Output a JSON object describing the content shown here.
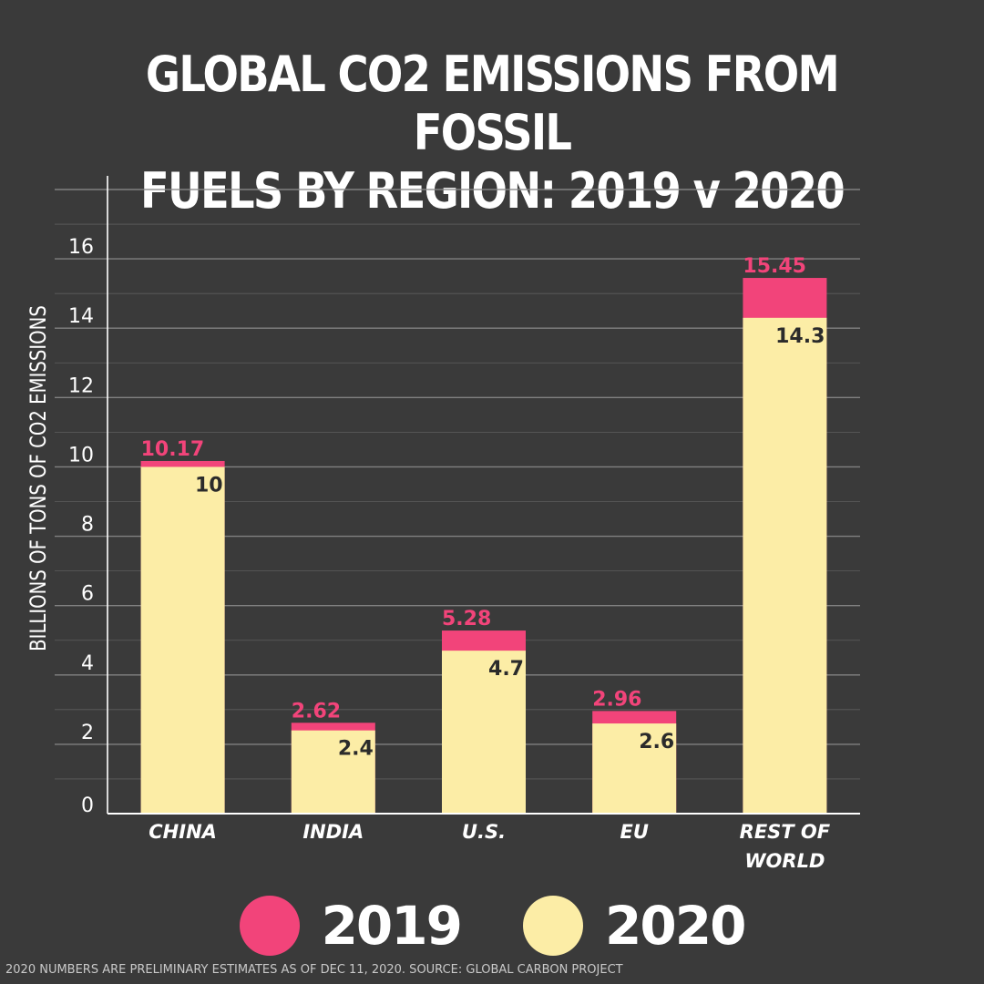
{
  "colors": {
    "background": "#3a3a3a",
    "color_2019": "#f2447a",
    "color_2020": "#fceda6",
    "gridline": "#8a8a8a",
    "axis": "#ffffff"
  },
  "legend": {
    "items": [
      {
        "label": "2019",
        "color": "#f2447a"
      },
      {
        "label": "2020",
        "color": "#fceda6"
      }
    ]
  },
  "footnote": "2020 NUMBERS ARE PRELIMINARY ESTIMATES AS OF DEC 11, 2020. SOURCE: GLOBAL CARBON PROJECT",
  "chart_data": {
    "type": "bar",
    "title": "GLOBAL CO2 EMISSIONS FROM FOSSIL FUELS BY REGION: 2019 v 2020",
    "title_lines": [
      "GLOBAL CO2 EMISSIONS FROM FOSSIL",
      "FUELS BY REGION: 2019 v 2020"
    ],
    "xlabel": "",
    "ylabel": "BILLIONS OF TONS OF CO2 EMISSIONS",
    "categories": [
      "CHINA",
      "INDIA",
      "U.S.",
      "EU",
      "REST OF WORLD"
    ],
    "category_lines": [
      [
        "CHINA"
      ],
      [
        "INDIA"
      ],
      [
        "U.S."
      ],
      [
        "EU"
      ],
      [
        "REST OF",
        "WORLD"
      ]
    ],
    "series": [
      {
        "name": "2019",
        "values": [
          10.17,
          2.62,
          5.28,
          2.96,
          15.45
        ],
        "labels": [
          "10.17",
          "2.62",
          "5.28",
          "2.96",
          "15.45"
        ]
      },
      {
        "name": "2020",
        "values": [
          10,
          2.4,
          4.7,
          2.6,
          14.3
        ],
        "labels": [
          "10",
          "2.4",
          "4.7",
          "2.6",
          "14.3"
        ]
      }
    ],
    "ylim": [
      0,
      18
    ],
    "yticks": [
      0,
      2,
      4,
      6,
      8,
      10,
      12,
      14,
      16
    ],
    "grid": true,
    "legend_position": "bottom"
  }
}
